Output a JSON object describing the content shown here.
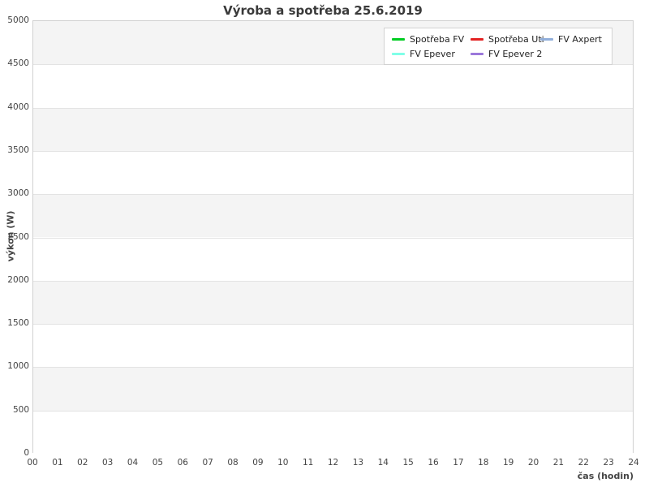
{
  "title": "Výroba a spotřeba 25.6.2019",
  "colors": {
    "band_gray": "#f4f4f4",
    "band_white": "#ffffff",
    "gridline": "#e3e3e3",
    "plot_border": "#d0d0d0",
    "title_text": "#3a3a3a",
    "tick_text": "#444444"
  },
  "chart_data": {
    "type": "line",
    "title": "Výroba a spotřeba 25.6.2019",
    "xlabel": "čas (hodin)",
    "ylabel": "výkon (W)",
    "xlim": [
      0,
      24
    ],
    "ylim": [
      0,
      5000
    ],
    "x_ticks": [
      "00",
      "01",
      "02",
      "03",
      "04",
      "05",
      "06",
      "07",
      "08",
      "09",
      "10",
      "11",
      "12",
      "13",
      "14",
      "15",
      "16",
      "17",
      "18",
      "19",
      "20",
      "21",
      "22",
      "23",
      "24"
    ],
    "y_ticks": [
      0,
      500,
      1000,
      1500,
      2000,
      2500,
      3000,
      3500,
      4000,
      4500,
      5000
    ],
    "grid": "horizontal",
    "background_bands": "alternating gray/white per 500 W",
    "legend_position": "top-right",
    "legend_columns": 3,
    "series": [
      {
        "name": "Spotřeba FV",
        "color": "#00cc22",
        "values": []
      },
      {
        "name": "FV Epever",
        "color": "#80ffe8",
        "values": []
      },
      {
        "name": "Spotřeba Uti",
        "color": "#e32222",
        "values": []
      },
      {
        "name": "FV Epever 2",
        "color": "#9b78db",
        "values": []
      },
      {
        "name": "FV Axpert",
        "color": "#91afdb",
        "values": []
      }
    ],
    "note": "no data lines visible in plot area"
  }
}
